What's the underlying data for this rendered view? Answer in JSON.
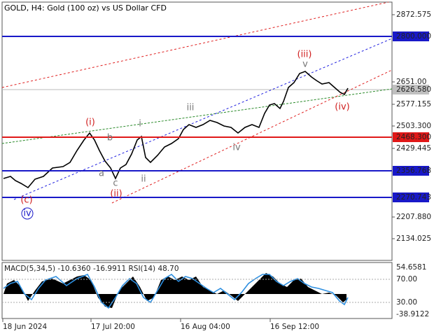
{
  "header": {
    "title": "GOLD, H4:  Gold (100 oz) vs US Dollar CFD"
  },
  "price_axis": {
    "labels": [
      "2872.575",
      "2651.00",
      "2577.155",
      "2503.300",
      "2429.445",
      "2207.880",
      "2134.025"
    ]
  },
  "levels": [
    {
      "label": "2800.000",
      "color": "#1818c8"
    },
    {
      "label": "2468.300",
      "color": "#e01818"
    },
    {
      "label": "2356.768",
      "color": "#1818c8"
    },
    {
      "label": "2270.743",
      "color": "#1818c8"
    }
  ],
  "current_price": "2626.580",
  "waves": [
    {
      "label": "(i)",
      "color": "#d02020"
    },
    {
      "label": "b",
      "color": "#777"
    },
    {
      "label": "i",
      "color": "#777"
    },
    {
      "label": "a",
      "color": "#777"
    },
    {
      "label": "c",
      "color": "#777"
    },
    {
      "label": "(ii)",
      "color": "#d02020"
    },
    {
      "label": "ii",
      "color": "#777"
    },
    {
      "label": "iii",
      "color": "#777"
    },
    {
      "label": "iv",
      "color": "#777"
    },
    {
      "label": "(iii)",
      "color": "#d02020"
    },
    {
      "label": "v",
      "color": "#777"
    },
    {
      "label": "(iv)",
      "color": "#d02020"
    },
    {
      "label": "(c)",
      "color": "#d02020"
    },
    {
      "label": "iv",
      "color": "#1818c8"
    }
  ],
  "indicator": {
    "title": "MACD(5,34,5) -10.6360 -16.9911 RSI(14) 48.70",
    "axis_labels": [
      "54.6581",
      "70.00",
      "30.00",
      "-38.9122"
    ]
  },
  "time_axis": [
    "18 Jun 2024",
    "17 Jul 20:00",
    "16 Aug 04:00",
    "16 Sep 12:00"
  ]
}
